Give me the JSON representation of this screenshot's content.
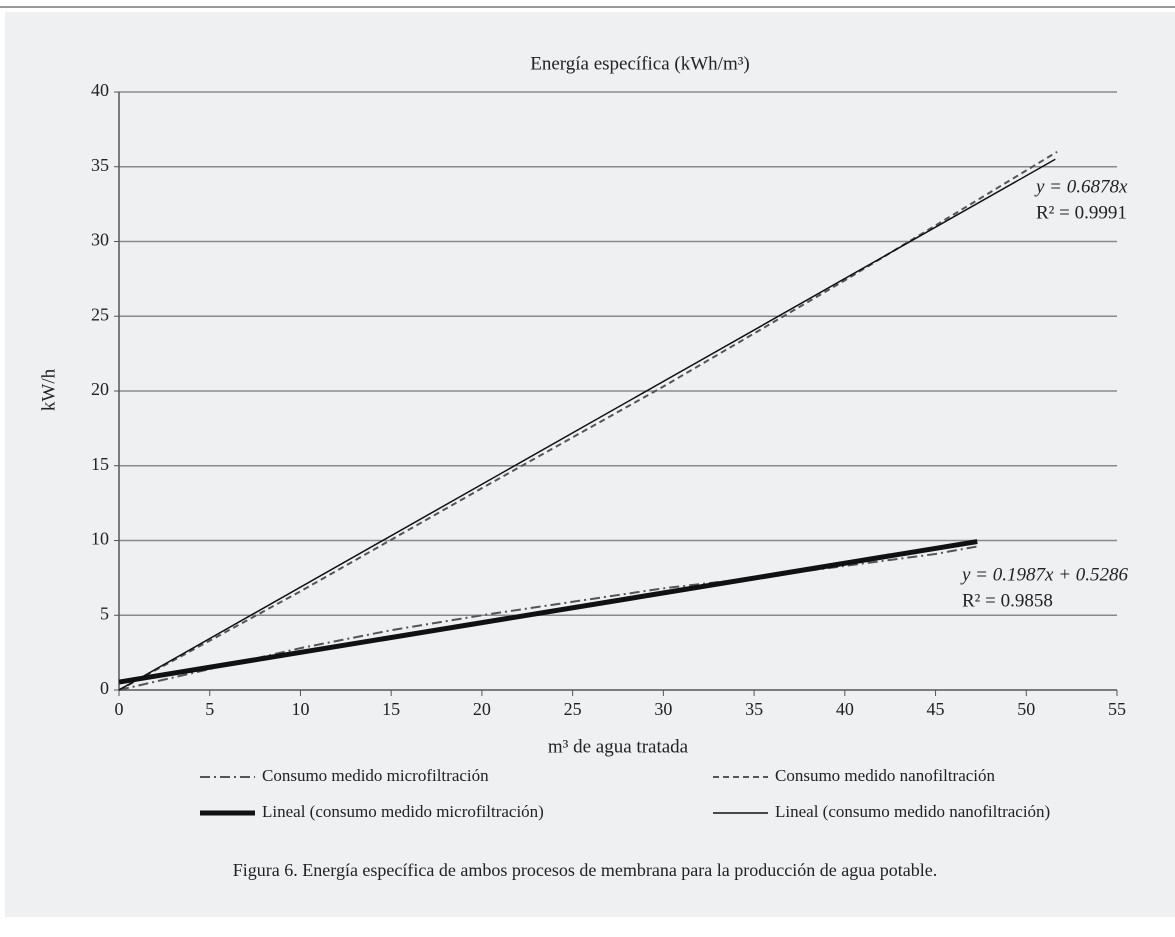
{
  "chart_data": {
    "type": "line",
    "title": "Energía específica (kWh/m³)",
    "xlabel": "m³ de agua tratada",
    "ylabel": "kW/h",
    "caption": "Figura 6. Energía específica de ambos procesos de membrana para la producción de agua potable.",
    "xlim": [
      0,
      55
    ],
    "xticks": [
      0,
      5,
      10,
      15,
      20,
      25,
      30,
      35,
      40,
      45,
      50,
      55
    ],
    "ylim": [
      0,
      40
    ],
    "yticks": [
      0,
      5,
      10,
      15,
      20,
      25,
      30,
      35,
      40
    ],
    "grid": true,
    "series": [
      {
        "name": "Consumo medido microfiltración",
        "color": "#555555",
        "linestyle": "dash-dot",
        "width": 2,
        "x": [
          0,
          5,
          10,
          15,
          20,
          25,
          30,
          35,
          40,
          45,
          47.3
        ],
        "values": [
          0,
          1.4,
          2.8,
          4,
          5,
          5.9,
          6.8,
          7.5,
          8.3,
          9.1,
          9.6
        ]
      },
      {
        "name": "Consumo medido nanofiltración",
        "color": "#555555",
        "linestyle": "dash",
        "width": 2,
        "x": [
          0,
          10,
          20,
          30,
          40,
          51.7
        ],
        "values": [
          0,
          6.6,
          13.5,
          20.3,
          27.4,
          36
        ]
      },
      {
        "name": "Lineal (consumo medido microfiltración)",
        "color": "#111111",
        "linestyle": "solid",
        "width": 5,
        "x": [
          0,
          47.3
        ],
        "values": [
          0.53,
          9.93
        ]
      },
      {
        "name": "Lineal (consumo medido nanofiltración)",
        "color": "#111111",
        "linestyle": "solid",
        "width": 1.5,
        "x": [
          0,
          51.6
        ],
        "values": [
          0,
          35.5
        ]
      }
    ],
    "annotations": [
      {
        "equation": "y = 0.6878x",
        "r2": "R² = 0.9991"
      },
      {
        "equation": "y = 0.1987x + 0.5286",
        "r2": "R² = 0.9858"
      }
    ]
  }
}
